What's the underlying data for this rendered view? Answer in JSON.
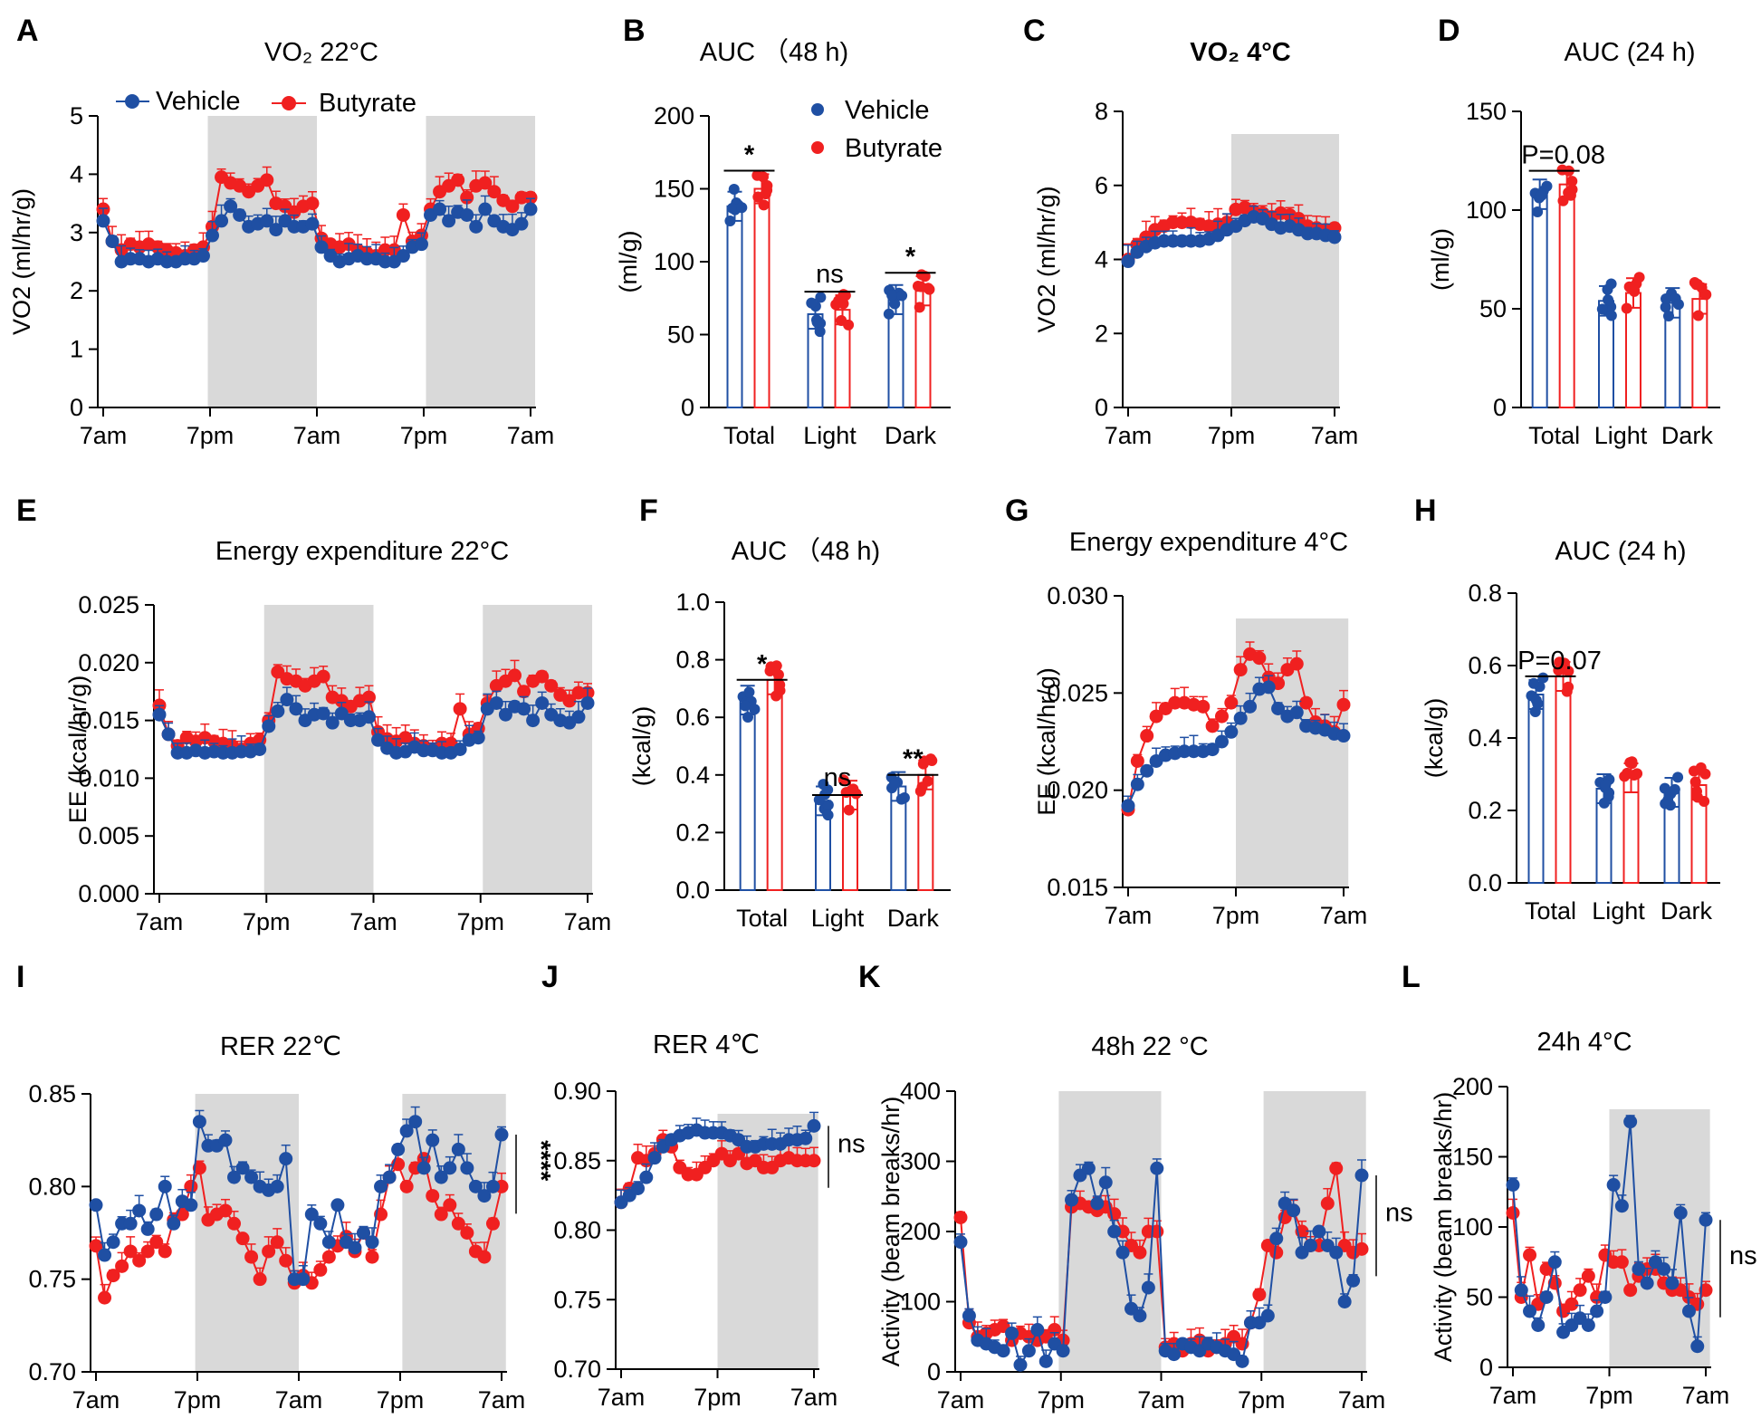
{
  "colors": {
    "vehicle": "#1f4fa3",
    "butyrate": "#f02020",
    "shade": "#d9d9d9",
    "axis": "#000000"
  },
  "legend": {
    "vehicle": "Vehicle",
    "butyrate": "Butyrate"
  },
  "chart_data": [
    {
      "id": "A",
      "letter": "A",
      "type": "line",
      "title": "VO₂ 22°C",
      "ylabel": "VO2 (ml/hr/g)",
      "ylim": [
        0,
        5
      ],
      "yticks": [
        "0",
        "1",
        "2",
        "3",
        "4",
        "5"
      ],
      "xticks": [
        "7am",
        "7pm",
        "7am",
        "7pm",
        "7am"
      ],
      "n_points": 48,
      "dark_periods": [
        [
          12,
          24
        ],
        [
          36,
          48
        ]
      ],
      "legend": "top-left",
      "series": [
        {
          "name": "Vehicle",
          "values": [
            3.2,
            2.85,
            2.5,
            2.55,
            2.55,
            2.5,
            2.55,
            2.5,
            2.5,
            2.55,
            2.55,
            2.6,
            2.95,
            3.2,
            3.45,
            3.3,
            3.1,
            3.15,
            3.2,
            3.05,
            3.2,
            3.1,
            3.1,
            3.15,
            2.75,
            2.6,
            2.5,
            2.55,
            2.6,
            2.55,
            2.55,
            2.5,
            2.5,
            2.6,
            2.75,
            2.8,
            3.3,
            3.4,
            3.2,
            3.35,
            3.3,
            3.1,
            3.4,
            3.2,
            3.1,
            3.05,
            3.15,
            3.4
          ]
        },
        {
          "name": "Butyrate",
          "values": [
            3.4,
            2.85,
            2.7,
            2.8,
            2.75,
            2.8,
            2.75,
            2.7,
            2.65,
            2.6,
            2.7,
            2.75,
            3.1,
            3.95,
            3.85,
            3.8,
            3.7,
            3.8,
            3.9,
            3.5,
            3.45,
            3.35,
            3.45,
            3.5,
            2.9,
            2.8,
            2.75,
            2.8,
            2.7,
            2.65,
            2.6,
            2.7,
            2.7,
            3.3,
            2.85,
            2.95,
            3.4,
            3.7,
            3.8,
            3.9,
            3.6,
            3.8,
            3.85,
            3.7,
            3.55,
            3.45,
            3.6,
            3.6
          ]
        }
      ]
    },
    {
      "id": "B",
      "letter": "B",
      "type": "bar",
      "title": "AUC （48 h)",
      "ylabel": "(ml/g)",
      "ylim": [
        0,
        200
      ],
      "yticks": [
        "0",
        "50",
        "100",
        "150",
        "200"
      ],
      "categories": [
        "Total",
        "Light",
        "Dark"
      ],
      "legend": "top-right",
      "significance": [
        "*",
        "ns",
        "*"
      ],
      "series": [
        {
          "name": "Vehicle",
          "values": [
            138,
            64,
            74
          ]
        },
        {
          "name": "Butyrate",
          "values": [
            150,
            67,
            80
          ]
        }
      ]
    },
    {
      "id": "C",
      "letter": "C",
      "type": "line",
      "title": "VO₂ 4°C",
      "ylabel": "VO2 (ml/hr/g)",
      "ylim": [
        0,
        8
      ],
      "yticks": [
        "0",
        "2",
        "4",
        "6",
        "8"
      ],
      "xticks": [
        "7am",
        "7pm",
        "7am"
      ],
      "n_points": 24,
      "dark_periods": [
        [
          12,
          24
        ]
      ],
      "series": [
        {
          "name": "Vehicle",
          "values": [
            3.95,
            4.2,
            4.35,
            4.45,
            4.5,
            4.5,
            4.5,
            4.5,
            4.5,
            4.55,
            4.65,
            4.8,
            4.9,
            5.05,
            5.15,
            5.1,
            4.95,
            4.85,
            4.9,
            4.8,
            4.7,
            4.7,
            4.65,
            4.6
          ]
        },
        {
          "name": "Butyrate",
          "values": [
            4.0,
            4.4,
            4.6,
            4.8,
            4.9,
            5.0,
            5.0,
            5.0,
            4.95,
            4.9,
            4.95,
            5.0,
            5.35,
            5.4,
            5.3,
            5.25,
            5.15,
            5.25,
            5.2,
            5.1,
            4.9,
            4.85,
            4.8,
            4.85
          ]
        }
      ]
    },
    {
      "id": "D",
      "letter": "D",
      "type": "bar",
      "title": "AUC (24 h)",
      "ylabel": "(ml/g)",
      "ylim": [
        0,
        150
      ],
      "yticks": [
        "0",
        "50",
        "100",
        "150"
      ],
      "categories": [
        "Total",
        "Light",
        "Dark"
      ],
      "significance": [
        "P=0.08",
        "",
        ""
      ],
      "series": [
        {
          "name": "Vehicle",
          "values": [
            108,
            54,
            53
          ]
        },
        {
          "name": "Butyrate",
          "values": [
            113,
            58,
            55
          ]
        }
      ]
    },
    {
      "id": "E",
      "letter": "E",
      "type": "line",
      "title": "Energy expenditure 22°C",
      "ylabel": "EE (kcal/hr/g)",
      "ylim": [
        0,
        0.025
      ],
      "yticks": [
        "0.000",
        "0.005",
        "0.010",
        "0.015",
        "0.020",
        "0.025"
      ],
      "xticks": [
        "7am",
        "7pm",
        "7am",
        "7pm",
        "7am"
      ],
      "n_points": 48,
      "dark_periods": [
        [
          12,
          24
        ],
        [
          36,
          48
        ]
      ],
      "series": [
        {
          "name": "Vehicle",
          "values": [
            0.0155,
            0.0138,
            0.0122,
            0.0122,
            0.0124,
            0.0122,
            0.0123,
            0.0122,
            0.0122,
            0.0123,
            0.0123,
            0.0125,
            0.0145,
            0.0158,
            0.0168,
            0.016,
            0.015,
            0.0155,
            0.0156,
            0.0148,
            0.0156,
            0.015,
            0.015,
            0.0153,
            0.0133,
            0.0126,
            0.0122,
            0.0123,
            0.0127,
            0.0124,
            0.0124,
            0.0122,
            0.0122,
            0.0125,
            0.0133,
            0.0135,
            0.016,
            0.0165,
            0.0155,
            0.0162,
            0.016,
            0.015,
            0.0165,
            0.0155,
            0.015,
            0.0148,
            0.0153,
            0.0165
          ]
        },
        {
          "name": "Butyrate",
          "values": [
            0.0163,
            0.0138,
            0.0128,
            0.0135,
            0.0132,
            0.0135,
            0.0132,
            0.013,
            0.0128,
            0.0125,
            0.013,
            0.0133,
            0.015,
            0.0192,
            0.0186,
            0.0184,
            0.018,
            0.0184,
            0.0188,
            0.017,
            0.0167,
            0.0162,
            0.0167,
            0.017,
            0.014,
            0.0134,
            0.0132,
            0.0135,
            0.013,
            0.0128,
            0.0125,
            0.013,
            0.013,
            0.016,
            0.0138,
            0.0143,
            0.0165,
            0.018,
            0.0184,
            0.0189,
            0.0175,
            0.0184,
            0.0188,
            0.018,
            0.0172,
            0.0167,
            0.0174,
            0.0174
          ]
        }
      ]
    },
    {
      "id": "F",
      "letter": "F",
      "type": "bar",
      "title": "AUC （48 h)",
      "ylabel": "(kcal/g)",
      "ylim": [
        0,
        1.0
      ],
      "yticks": [
        "0.0",
        "0.2",
        "0.4",
        "0.6",
        "0.8",
        "1.0"
      ],
      "categories": [
        "Total",
        "Light",
        "Dark"
      ],
      "significance": [
        "*",
        "ns",
        "**"
      ],
      "series": [
        {
          "name": "Vehicle",
          "values": [
            0.66,
            0.31,
            0.36
          ]
        },
        {
          "name": "Butyrate",
          "values": [
            0.73,
            0.33,
            0.4
          ]
        }
      ]
    },
    {
      "id": "G",
      "letter": "G",
      "type": "line",
      "title": "Energy expenditure 4°C",
      "ylabel": "EE (kcal/hr/g)",
      "ylim": [
        0.015,
        0.03
      ],
      "yticks": [
        "0.015",
        "0.020",
        "0.025",
        "0.030"
      ],
      "xticks": [
        "7am",
        "7pm",
        "7am"
      ],
      "n_points": 24,
      "dark_periods": [
        [
          12,
          24
        ]
      ],
      "series": [
        {
          "name": "Vehicle",
          "values": [
            0.0192,
            0.0203,
            0.021,
            0.0215,
            0.0218,
            0.0219,
            0.022,
            0.022,
            0.022,
            0.0221,
            0.0225,
            0.023,
            0.0237,
            0.0243,
            0.0252,
            0.0253,
            0.0242,
            0.0238,
            0.024,
            0.0233,
            0.0232,
            0.0231,
            0.0229,
            0.0228
          ]
        },
        {
          "name": "Butyrate",
          "values": [
            0.019,
            0.0215,
            0.0228,
            0.0238,
            0.0242,
            0.0245,
            0.0245,
            0.0244,
            0.0243,
            0.0233,
            0.0238,
            0.0245,
            0.0262,
            0.027,
            0.0268,
            0.0258,
            0.0255,
            0.0262,
            0.0265,
            0.0245,
            0.0235,
            0.0233,
            0.023,
            0.0244
          ]
        }
      ]
    },
    {
      "id": "H",
      "letter": "H",
      "type": "bar",
      "title": "AUC (24 h)",
      "ylabel": "(kcal/g)",
      "ylim": [
        0,
        0.8
      ],
      "yticks": [
        "0.0",
        "0.2",
        "0.4",
        "0.6",
        "0.8"
      ],
      "categories": [
        "Total",
        "Light",
        "Dark"
      ],
      "significance": [
        "P=0.07",
        "",
        ""
      ],
      "series": [
        {
          "name": "Vehicle",
          "values": [
            0.52,
            0.26,
            0.25
          ]
        },
        {
          "name": "Butyrate",
          "values": [
            0.57,
            0.29,
            0.27
          ]
        }
      ]
    },
    {
      "id": "I",
      "letter": "I",
      "type": "line",
      "title": "RER 22℃",
      "ylabel": "",
      "ylim": [
        0.7,
        0.85
      ],
      "yticks": [
        "0.70",
        "0.75",
        "0.80",
        "0.85"
      ],
      "xticks": [
        "7am",
        "7pm",
        "7am",
        "7pm",
        "7am"
      ],
      "n_points": 48,
      "dark_periods": [
        [
          12,
          24
        ],
        [
          36,
          48
        ]
      ],
      "significance_right": "****",
      "series": [
        {
          "name": "Vehicle",
          "values": [
            0.79,
            0.763,
            0.77,
            0.78,
            0.78,
            0.787,
            0.777,
            0.785,
            0.8,
            0.78,
            0.792,
            0.79,
            0.835,
            0.822,
            0.822,
            0.825,
            0.805,
            0.81,
            0.805,
            0.8,
            0.798,
            0.8,
            0.815,
            0.75,
            0.75,
            0.785,
            0.78,
            0.77,
            0.79,
            0.77,
            0.767,
            0.775,
            0.77,
            0.8,
            0.805,
            0.82,
            0.83,
            0.835,
            0.81,
            0.825,
            0.805,
            0.81,
            0.82,
            0.81,
            0.8,
            0.795,
            0.8,
            0.828
          ]
        },
        {
          "name": "Butyrate",
          "values": [
            0.768,
            0.74,
            0.752,
            0.757,
            0.765,
            0.76,
            0.765,
            0.77,
            0.765,
            0.782,
            0.785,
            0.8,
            0.81,
            0.782,
            0.785,
            0.787,
            0.78,
            0.772,
            0.762,
            0.75,
            0.765,
            0.77,
            0.76,
            0.748,
            0.752,
            0.748,
            0.755,
            0.762,
            0.768,
            0.773,
            0.765,
            0.775,
            0.762,
            0.785,
            0.805,
            0.812,
            0.8,
            0.81,
            0.815,
            0.795,
            0.785,
            0.79,
            0.78,
            0.775,
            0.765,
            0.762,
            0.78,
            0.8
          ]
        }
      ]
    },
    {
      "id": "J",
      "letter": "J",
      "type": "line",
      "title": "RER 4℃",
      "ylabel": "",
      "ylim": [
        0.7,
        0.9
      ],
      "yticks": [
        "0.70",
        "0.75",
        "0.80",
        "0.85",
        "0.90"
      ],
      "xticks": [
        "7am",
        "7pm",
        "7am"
      ],
      "n_points": 24,
      "dark_periods": [
        [
          12,
          24
        ]
      ],
      "significance_right": "ns",
      "series": [
        {
          "name": "Vehicle",
          "values": [
            0.82,
            0.825,
            0.83,
            0.838,
            0.852,
            0.86,
            0.865,
            0.868,
            0.87,
            0.872,
            0.87,
            0.87,
            0.87,
            0.868,
            0.865,
            0.86,
            0.86,
            0.862,
            0.862,
            0.862,
            0.865,
            0.865,
            0.866,
            0.875
          ]
        },
        {
          "name": "Butyrate",
          "values": [
            0.82,
            0.83,
            0.852,
            0.85,
            0.855,
            0.865,
            0.86,
            0.845,
            0.84,
            0.84,
            0.845,
            0.85,
            0.855,
            0.85,
            0.855,
            0.848,
            0.85,
            0.845,
            0.845,
            0.85,
            0.852,
            0.85,
            0.85,
            0.85
          ]
        }
      ]
    },
    {
      "id": "K",
      "letter": "K",
      "type": "line",
      "title": "48h 22 °C",
      "ylabel": "Activity (beam breaks/hr)",
      "ylim": [
        0,
        400
      ],
      "yticks": [
        "0",
        "100",
        "200",
        "300",
        "400"
      ],
      "xticks": [
        "7am",
        "7pm",
        "7am",
        "7pm",
        "7am"
      ],
      "n_points": 48,
      "dark_periods": [
        [
          12,
          24
        ],
        [
          36,
          48
        ]
      ],
      "significance_right": "ns",
      "series": [
        {
          "name": "Vehicle",
          "values": [
            185,
            80,
            45,
            40,
            35,
            30,
            55,
            10,
            30,
            60,
            15,
            40,
            30,
            245,
            280,
            290,
            240,
            270,
            200,
            170,
            90,
            80,
            120,
            290,
            30,
            25,
            40,
            35,
            30,
            40,
            35,
            30,
            25,
            15,
            70,
            70,
            80,
            190,
            240,
            230,
            170,
            180,
            200,
            180,
            170,
            100,
            130,
            280
          ]
        },
        {
          "name": "Butyrate",
          "values": [
            220,
            70,
            50,
            55,
            60,
            65,
            45,
            55,
            50,
            45,
            50,
            60,
            45,
            235,
            240,
            235,
            230,
            235,
            225,
            200,
            180,
            170,
            200,
            200,
            35,
            40,
            30,
            40,
            45,
            30,
            35,
            40,
            50,
            40,
            70,
            110,
            180,
            170,
            220,
            230,
            200,
            180,
            180,
            240,
            290,
            180,
            170,
            175
          ]
        }
      ]
    },
    {
      "id": "L",
      "letter": "L",
      "type": "line",
      "title": "24h 4°C",
      "ylabel": "Activity (beam breaks/hr)",
      "ylim": [
        0,
        200
      ],
      "yticks": [
        "0",
        "50",
        "100",
        "150",
        "200"
      ],
      "xticks": [
        "7am",
        "7pm",
        "7am"
      ],
      "n_points": 24,
      "dark_periods": [
        [
          12,
          24
        ]
      ],
      "significance_right": "ns",
      "series": [
        {
          "name": "Vehicle",
          "values": [
            130,
            55,
            40,
            30,
            50,
            75,
            25,
            30,
            35,
            30,
            40,
            50,
            130,
            115,
            175,
            70,
            60,
            75,
            70,
            60,
            110,
            40,
            15,
            105
          ]
        },
        {
          "name": "Butyrate",
          "values": [
            110,
            50,
            80,
            45,
            70,
            60,
            40,
            45,
            55,
            65,
            50,
            80,
            75,
            75,
            55,
            65,
            70,
            70,
            60,
            55,
            55,
            50,
            45,
            55
          ]
        }
      ]
    }
  ]
}
